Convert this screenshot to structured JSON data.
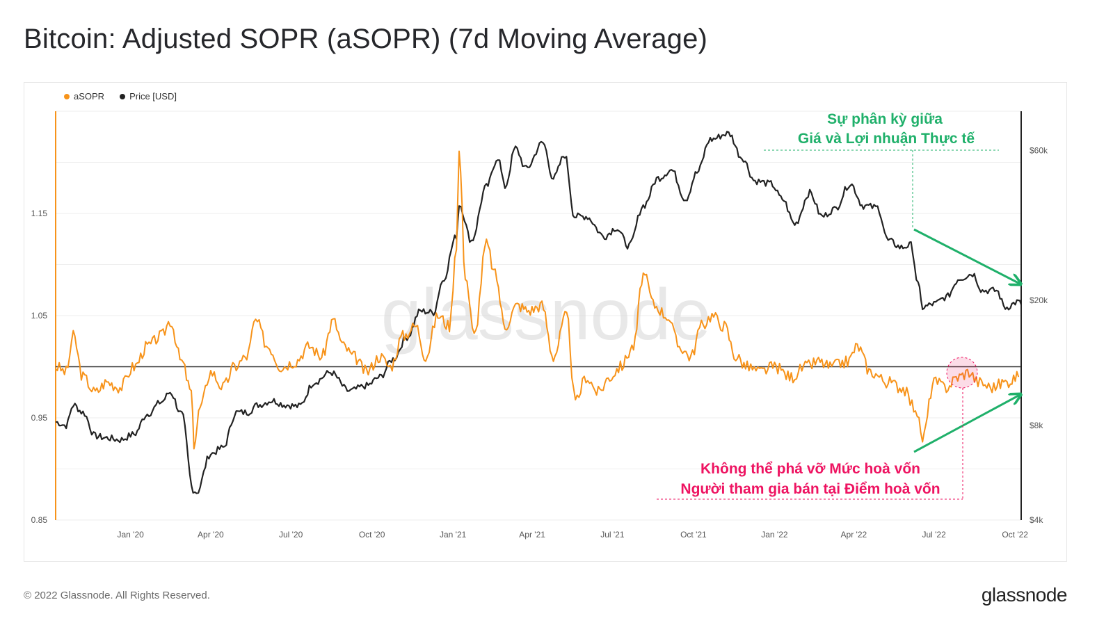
{
  "page": {
    "title": "Bitcoin: Adjusted SOPR (aSOPR) (7d Moving Average)",
    "copyright": "© 2022 Glassnode. All Rights Reserved.",
    "logo": "glassnode",
    "watermark": "glassnode"
  },
  "colors": {
    "asopr": "#f7931a",
    "price": "#222222",
    "green_annotation": "#1fb06a",
    "pink_annotation": "#ee1361",
    "breakeven_line": "#333333"
  },
  "annotations": {
    "divergence_line1": "Sự phân kỳ giữa",
    "divergence_line2": "Giá và Lợi nhuận Thực tế",
    "breakeven_line1": "Không thể phá vỡ Mức hoà vốn",
    "breakeven_line2": "Người tham gia bán tại Điểm hoà vốn"
  },
  "chart_data": {
    "type": "line",
    "legend_position": "top-left",
    "grid": true,
    "x_ticks": [
      "Jan '20",
      "Apr '20",
      "Jul '20",
      "Oct '20",
      "Jan '21",
      "Apr '21",
      "Jul '21",
      "Oct '21",
      "Jan '22",
      "Apr '22",
      "Jul '22",
      "Oct '22"
    ],
    "x_range": [
      "2019-10-08",
      "2022-10-08"
    ],
    "y_left": {
      "label": "",
      "ticks": [
        "0.85",
        "0.95",
        "1.05",
        "1.15"
      ],
      "range": [
        0.85,
        1.25
      ]
    },
    "y_right": {
      "label": "",
      "scale": "log",
      "ticks": [
        "$4k",
        "$8k",
        "$20k",
        "$60k"
      ],
      "range": [
        4000,
        80000
      ]
    },
    "breakeven_level": 1.0,
    "series": [
      {
        "name": "aSOPR",
        "axis": "left",
        "points": [
          [
            "2019-10-08",
            1.0
          ],
          [
            "2019-10-20",
            0.995
          ],
          [
            "2019-10-28",
            1.03
          ],
          [
            "2019-11-08",
            0.99
          ],
          [
            "2019-11-22",
            0.975
          ],
          [
            "2019-12-05",
            0.985
          ],
          [
            "2019-12-20",
            0.98
          ],
          [
            "2020-01-05",
            1.0
          ],
          [
            "2020-01-20",
            1.02
          ],
          [
            "2020-02-05",
            1.03
          ],
          [
            "2020-02-15",
            1.045
          ],
          [
            "2020-02-28",
            1.005
          ],
          [
            "2020-03-10",
            0.975
          ],
          [
            "2020-03-13",
            0.925
          ],
          [
            "2020-03-20",
            0.96
          ],
          [
            "2020-04-01",
            0.995
          ],
          [
            "2020-04-15",
            0.98
          ],
          [
            "2020-04-28",
            1.0
          ],
          [
            "2020-05-12",
            1.01
          ],
          [
            "2020-05-22",
            1.045
          ],
          [
            "2020-06-05",
            1.02
          ],
          [
            "2020-06-20",
            1.0
          ],
          [
            "2020-07-05",
            1.005
          ],
          [
            "2020-07-22",
            1.02
          ],
          [
            "2020-08-05",
            1.01
          ],
          [
            "2020-08-18",
            1.045
          ],
          [
            "2020-08-30",
            1.02
          ],
          [
            "2020-09-10",
            1.01
          ],
          [
            "2020-09-25",
            0.995
          ],
          [
            "2020-10-10",
            1.01
          ],
          [
            "2020-10-22",
            1.0
          ],
          [
            "2020-11-05",
            1.03
          ],
          [
            "2020-11-20",
            1.04
          ],
          [
            "2020-12-01",
            1.01
          ],
          [
            "2020-12-15",
            1.05
          ],
          [
            "2020-12-28",
            1.04
          ],
          [
            "2021-01-05",
            1.12
          ],
          [
            "2021-01-08",
            1.21
          ],
          [
            "2021-01-15",
            1.09
          ],
          [
            "2021-01-25",
            1.03
          ],
          [
            "2021-02-08",
            1.12
          ],
          [
            "2021-02-18",
            1.09
          ],
          [
            "2021-03-01",
            1.04
          ],
          [
            "2021-03-15",
            1.06
          ],
          [
            "2021-03-28",
            1.055
          ],
          [
            "2021-04-12",
            1.06
          ],
          [
            "2021-04-25",
            1.01
          ],
          [
            "2021-05-10",
            1.05
          ],
          [
            "2021-05-20",
            0.965
          ],
          [
            "2021-06-01",
            0.99
          ],
          [
            "2021-06-15",
            0.975
          ],
          [
            "2021-06-28",
            0.99
          ],
          [
            "2021-07-10",
            1.0
          ],
          [
            "2021-07-25",
            1.02
          ],
          [
            "2021-08-05",
            1.09
          ],
          [
            "2021-08-18",
            1.06
          ],
          [
            "2021-09-01",
            1.05
          ],
          [
            "2021-09-15",
            1.02
          ],
          [
            "2021-09-28",
            1.01
          ],
          [
            "2021-10-10",
            1.04
          ],
          [
            "2021-10-22",
            1.05
          ],
          [
            "2021-11-05",
            1.04
          ],
          [
            "2021-11-18",
            1.01
          ],
          [
            "2021-12-01",
            1.0
          ],
          [
            "2021-12-15",
            0.995
          ],
          [
            "2022-01-01",
            1.0
          ],
          [
            "2022-01-20",
            0.99
          ],
          [
            "2022-02-05",
            1.0
          ],
          [
            "2022-02-20",
            1.005
          ],
          [
            "2022-03-05",
            1.0
          ],
          [
            "2022-03-25",
            1.005
          ],
          [
            "2022-04-05",
            1.02
          ],
          [
            "2022-04-20",
            0.995
          ],
          [
            "2022-05-10",
            0.985
          ],
          [
            "2022-05-25",
            0.98
          ],
          [
            "2022-06-10",
            0.96
          ],
          [
            "2022-06-18",
            0.93
          ],
          [
            "2022-07-01",
            0.985
          ],
          [
            "2022-07-15",
            0.98
          ],
          [
            "2022-07-28",
            0.99
          ],
          [
            "2022-08-10",
            0.995
          ],
          [
            "2022-08-20",
            0.985
          ],
          [
            "2022-09-05",
            0.98
          ],
          [
            "2022-09-20",
            0.985
          ],
          [
            "2022-10-05",
            0.99
          ]
        ]
      },
      {
        "name": "Price [USD]",
        "axis": "right",
        "points": [
          [
            "2019-10-08",
            8200
          ],
          [
            "2019-10-20",
            8000
          ],
          [
            "2019-10-28",
            9300
          ],
          [
            "2019-11-08",
            8800
          ],
          [
            "2019-11-22",
            7400
          ],
          [
            "2019-12-05",
            7300
          ],
          [
            "2019-12-20",
            7200
          ],
          [
            "2020-01-05",
            7500
          ],
          [
            "2020-01-20",
            8700
          ],
          [
            "2020-02-05",
            9500
          ],
          [
            "2020-02-15",
            10200
          ],
          [
            "2020-02-28",
            8700
          ],
          [
            "2020-03-12",
            5000
          ],
          [
            "2020-03-16",
            4900
          ],
          [
            "2020-04-01",
            6500
          ],
          [
            "2020-04-15",
            6800
          ],
          [
            "2020-04-30",
            8800
          ],
          [
            "2020-05-12",
            8800
          ],
          [
            "2020-05-25",
            9300
          ],
          [
            "2020-06-10",
            9600
          ],
          [
            "2020-06-25",
            9300
          ],
          [
            "2020-07-10",
            9200
          ],
          [
            "2020-07-28",
            11000
          ],
          [
            "2020-08-15",
            11800
          ],
          [
            "2020-09-05",
            10300
          ],
          [
            "2020-09-25",
            10700
          ],
          [
            "2020-10-10",
            11400
          ],
          [
            "2020-10-25",
            13000
          ],
          [
            "2020-11-10",
            15300
          ],
          [
            "2020-11-25",
            18500
          ],
          [
            "2020-12-10",
            18300
          ],
          [
            "2020-12-20",
            23000
          ],
          [
            "2021-01-05",
            32000
          ],
          [
            "2021-01-08",
            40500
          ],
          [
            "2021-01-22",
            31000
          ],
          [
            "2021-02-08",
            46000
          ],
          [
            "2021-02-21",
            57000
          ],
          [
            "2021-03-01",
            46000
          ],
          [
            "2021-03-13",
            61000
          ],
          [
            "2021-03-25",
            52500
          ],
          [
            "2021-04-13",
            63500
          ],
          [
            "2021-04-25",
            49000
          ],
          [
            "2021-05-08",
            58000
          ],
          [
            "2021-05-19",
            37000
          ],
          [
            "2021-06-01",
            37000
          ],
          [
            "2021-06-22",
            32000
          ],
          [
            "2021-07-05",
            34000
          ],
          [
            "2021-07-20",
            29800
          ],
          [
            "2021-08-05",
            40000
          ],
          [
            "2021-08-22",
            49000
          ],
          [
            "2021-09-06",
            52000
          ],
          [
            "2021-09-22",
            42000
          ],
          [
            "2021-10-05",
            51000
          ],
          [
            "2021-10-20",
            65000
          ],
          [
            "2021-11-10",
            68000
          ],
          [
            "2021-11-25",
            57000
          ],
          [
            "2021-12-10",
            48000
          ],
          [
            "2021-12-28",
            47000
          ],
          [
            "2022-01-10",
            42000
          ],
          [
            "2022-01-24",
            35000
          ],
          [
            "2022-02-10",
            44000
          ],
          [
            "2022-02-24",
            37000
          ],
          [
            "2022-03-10",
            39000
          ],
          [
            "2022-03-28",
            47000
          ],
          [
            "2022-04-12",
            40000
          ],
          [
            "2022-04-28",
            39500
          ],
          [
            "2022-05-10",
            31000
          ],
          [
            "2022-05-25",
            29500
          ],
          [
            "2022-06-05",
            30000
          ],
          [
            "2022-06-13",
            22500
          ],
          [
            "2022-06-18",
            19000
          ],
          [
            "2022-07-01",
            19500
          ],
          [
            "2022-07-15",
            20500
          ],
          [
            "2022-07-30",
            23500
          ],
          [
            "2022-08-14",
            24300
          ],
          [
            "2022-08-25",
            21500
          ],
          [
            "2022-09-10",
            21500
          ],
          [
            "2022-09-20",
            19000
          ],
          [
            "2022-10-05",
            19800
          ],
          [
            "2022-10-08",
            19400
          ]
        ]
      }
    ]
  }
}
